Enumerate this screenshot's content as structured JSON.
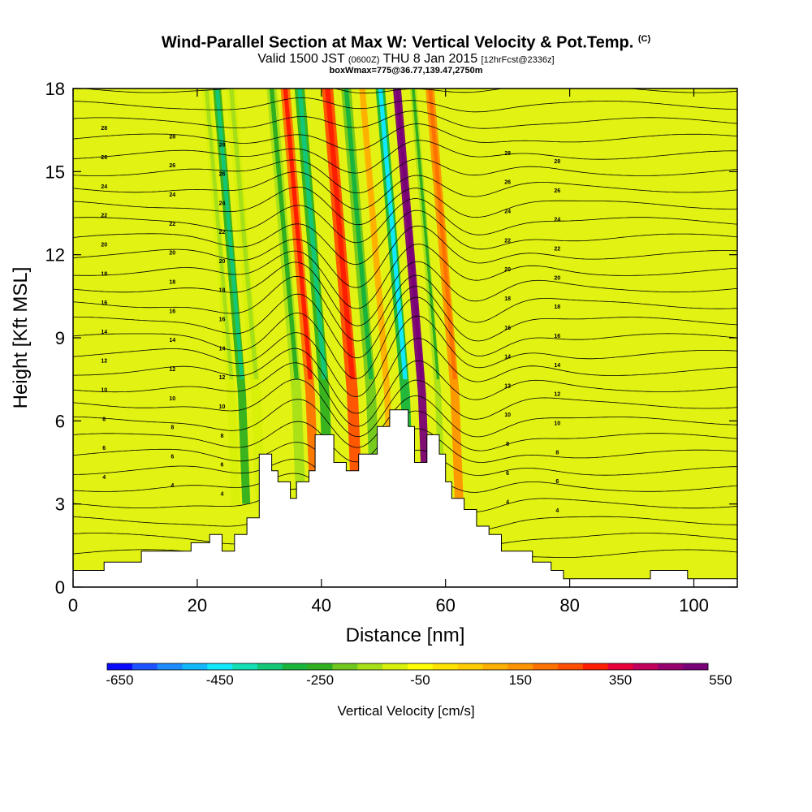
{
  "header": {
    "title": "Wind-Parallel Section at Max W: Vertical Velocity & Pot.Temp.",
    "title_mark": "(C)",
    "subtitle_pre": "Valid 1500 JST",
    "subtitle_small1": "(0600Z)",
    "subtitle_mid": "THU 8 Jan 2015",
    "subtitle_small2": "[12hrFcst@2336z]",
    "info_line": "boxWmax=775@36.77,139.47,2750m"
  },
  "chart_data": {
    "type": "heatmap",
    "title": "Wind-Parallel Section at Max W: Vertical Velocity & Pot.Temp.",
    "xlabel": "Distance [nm]",
    "ylabel": "Height [Kft MSL]",
    "xlim": [
      0,
      107
    ],
    "ylim": [
      0,
      18
    ],
    "x_ticks": [
      0,
      20,
      40,
      60,
      80,
      100
    ],
    "y_ticks": [
      0,
      3,
      6,
      9,
      12,
      15,
      18
    ],
    "colorbar": {
      "label": "Vertical Velocity [cm/s]",
      "tick_labels": [
        "-650",
        "-450",
        "-250",
        "-50",
        "150",
        "350",
        "550"
      ],
      "tick_values": [
        -650,
        -450,
        -250,
        -50,
        150,
        350,
        550
      ],
      "colors": [
        "#0a0aff",
        "#1f52ff",
        "#1c8cff",
        "#12b8ff",
        "#0fe8ff",
        "#12e0b4",
        "#12c878",
        "#18b43c",
        "#30b020",
        "#70c81e",
        "#a8e018",
        "#d8f00a",
        "#ffff00",
        "#ffe400",
        "#ffcc00",
        "#ffb000",
        "#ff9400",
        "#ff7200",
        "#ff4e00",
        "#ff1e00",
        "#e8003a",
        "#c0005c",
        "#96006e",
        "#7a0078"
      ]
    },
    "terrain": [
      [
        0,
        0.6
      ],
      [
        5,
        0.6
      ],
      [
        5,
        0.9
      ],
      [
        11,
        0.9
      ],
      [
        11,
        1.3
      ],
      [
        19,
        1.3
      ],
      [
        19,
        1.6
      ],
      [
        22,
        1.6
      ],
      [
        22,
        1.9
      ],
      [
        24,
        1.9
      ],
      [
        24,
        1.3
      ],
      [
        26,
        1.3
      ],
      [
        26,
        1.9
      ],
      [
        28,
        1.9
      ],
      [
        28,
        2.5
      ],
      [
        30,
        2.5
      ],
      [
        30,
        4.8
      ],
      [
        32,
        4.8
      ],
      [
        32,
        4.2
      ],
      [
        33,
        4.2
      ],
      [
        33,
        3.8
      ],
      [
        35,
        3.8
      ],
      [
        35,
        3.2
      ],
      [
        36,
        3.2
      ],
      [
        36,
        3.8
      ],
      [
        38,
        3.8
      ],
      [
        38,
        4.2
      ],
      [
        39,
        4.2
      ],
      [
        39,
        5.5
      ],
      [
        42,
        5.5
      ],
      [
        42,
        4.5
      ],
      [
        44,
        4.5
      ],
      [
        44,
        4.2
      ],
      [
        46,
        4.2
      ],
      [
        46,
        4.8
      ],
      [
        49,
        4.8
      ],
      [
        49,
        5.8
      ],
      [
        51,
        5.8
      ],
      [
        51,
        6.4
      ],
      [
        54,
        6.4
      ],
      [
        54,
        5.8
      ],
      [
        55,
        5.8
      ],
      [
        55,
        4.5
      ],
      [
        57,
        4.5
      ],
      [
        57,
        5.5
      ],
      [
        59,
        5.5
      ],
      [
        59,
        4.8
      ],
      [
        60,
        4.8
      ],
      [
        60,
        3.8
      ],
      [
        61,
        3.8
      ],
      [
        61,
        3.2
      ],
      [
        63,
        3.2
      ],
      [
        63,
        2.8
      ],
      [
        65,
        2.8
      ],
      [
        65,
        2.2
      ],
      [
        67,
        2.2
      ],
      [
        67,
        1.9
      ],
      [
        69,
        1.9
      ],
      [
        69,
        1.3
      ],
      [
        74,
        1.3
      ],
      [
        74,
        0.9
      ],
      [
        77,
        0.9
      ],
      [
        77,
        0.6
      ],
      [
        79,
        0.6
      ],
      [
        79,
        0.3
      ],
      [
        93,
        0.3
      ],
      [
        93,
        0.6
      ],
      [
        99,
        0.6
      ],
      [
        99,
        0.3
      ],
      [
        107,
        0.3
      ]
    ],
    "w_field_units": "cm/s",
    "w_bands": [
      {
        "x": 25.5,
        "w": -120,
        "width": 1.4
      },
      {
        "x": 27.2,
        "w": -260,
        "width": 1.3
      },
      {
        "x": 29.5,
        "w": -140,
        "width": 1.6
      },
      {
        "x": 36.0,
        "w": -180,
        "width": 1.6
      },
      {
        "x": 38.2,
        "w": 180,
        "width": 1.5
      },
      {
        "x": 40.5,
        "w": -260,
        "width": 1.6
      },
      {
        "x": 45.0,
        "w": 200,
        "width": 1.8
      },
      {
        "x": 48.0,
        "w": -250,
        "width": 1.6
      },
      {
        "x": 50.6,
        "w": 60,
        "width": 1.0
      },
      {
        "x": 53.5,
        "w": -330,
        "width": 1.5
      },
      {
        "x": 56.2,
        "w": 500,
        "width": 1.3
      },
      {
        "x": 58.8,
        "w": -200,
        "width": 1.0
      },
      {
        "x": 61.5,
        "w": 120,
        "width": 1.4
      }
    ],
    "contour_labels": [
      "28",
      "26",
      "24",
      "22",
      "20",
      "18",
      "16",
      "14",
      "12",
      "10",
      "8",
      "6",
      "4"
    ]
  }
}
